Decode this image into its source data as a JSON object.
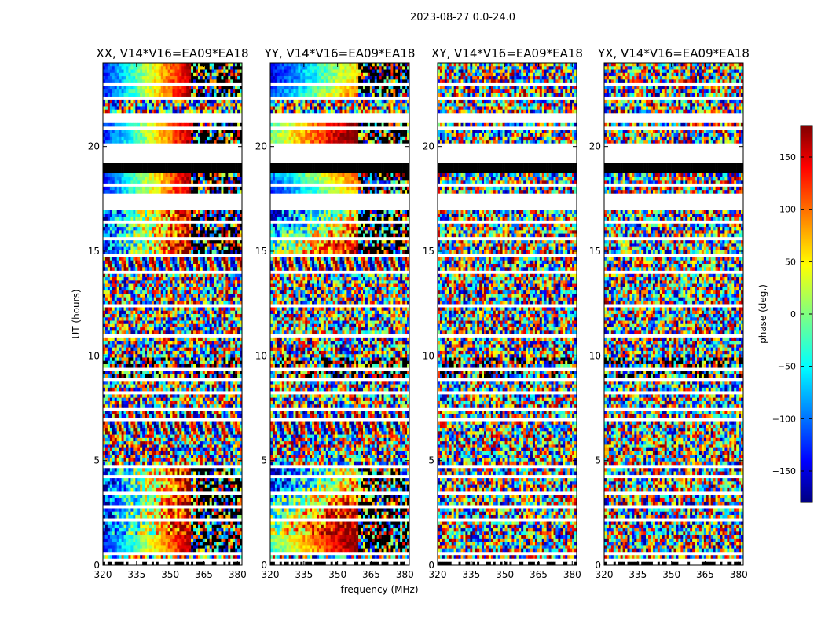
{
  "figure_title": "2023-08-27 0.0-24.0",
  "chart_data": {
    "type": "heatmap",
    "suptitle": "2023-08-27 0.0-24.0",
    "xlabel": "frequency (MHz)",
    "ylabel": "UT (hours)",
    "xlim": [
      320,
      382
    ],
    "ylim": [
      0,
      24
    ],
    "xticks": [
      "320",
      "335",
      "350",
      "365",
      "380"
    ],
    "yticks": [
      "0",
      "5",
      "10",
      "15",
      "20"
    ],
    "colorbar": {
      "label": "phase (deg.)",
      "range": [
        -180,
        180
      ],
      "ticks": [
        "150",
        "100",
        "50",
        "0",
        "−50",
        "−100",
        "−150"
      ],
      "colormap": "jet"
    },
    "panels": [
      {
        "title": "XX, V14*V16=EA09*EA18",
        "pattern": "xx"
      },
      {
        "title": "YY, V14*V16=EA09*EA18",
        "pattern": "yy"
      },
      {
        "title": "XY, V14*V16=EA09*EA18",
        "pattern": "noise"
      },
      {
        "title": "YX, V14*V16=EA09*EA18",
        "pattern": "noise"
      }
    ]
  }
}
